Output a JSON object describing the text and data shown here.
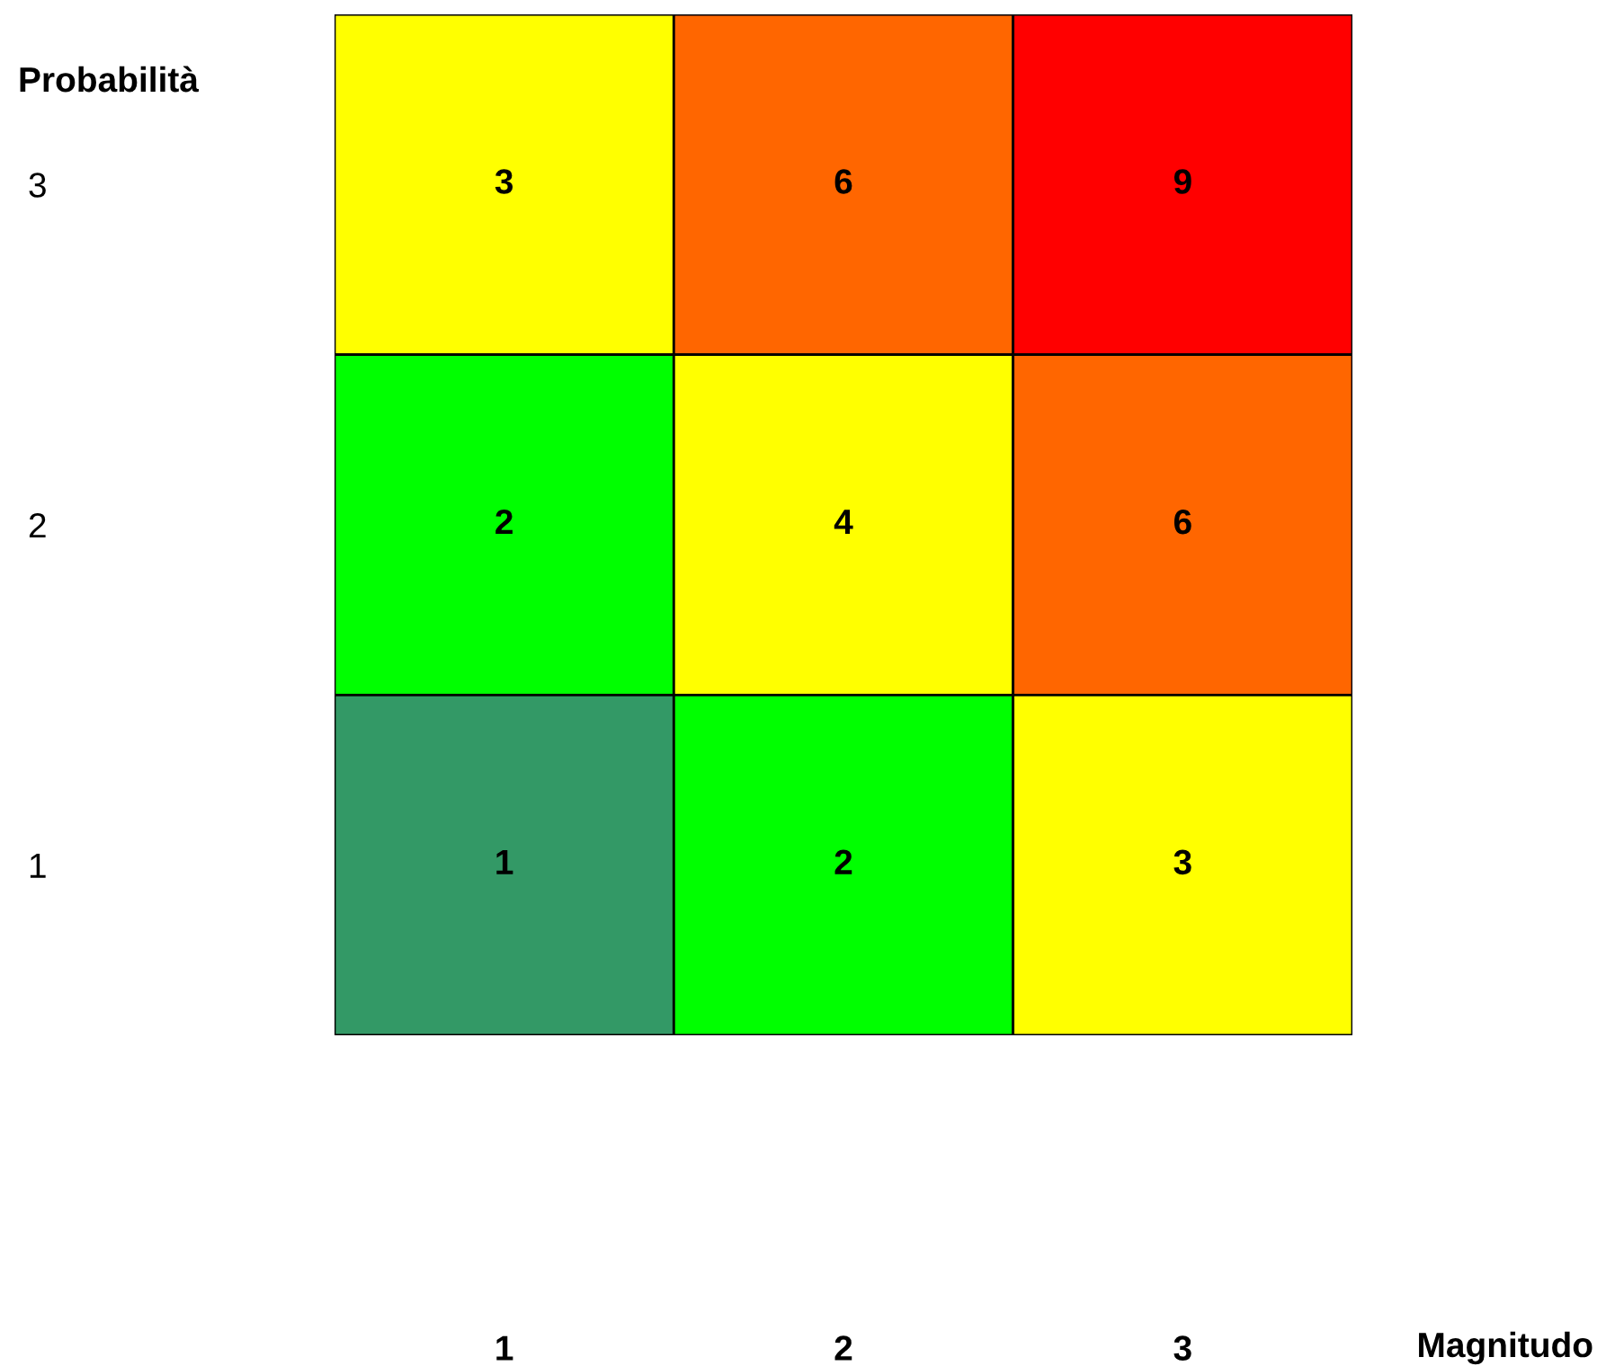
{
  "chart_data": {
    "type": "heatmap",
    "xlabel": "Magnitudo",
    "ylabel": "Probabilità",
    "categories": [
      "1",
      "2",
      "3"
    ],
    "y_categories": [
      "3",
      "2",
      "1"
    ],
    "cells": [
      [
        3,
        6,
        9
      ],
      [
        2,
        4,
        6
      ],
      [
        1,
        2,
        3
      ]
    ],
    "colors": [
      "#339966",
      "#00ff00",
      "#ffff00",
      "#ffff00",
      "#ff6600",
      "#ff0000"
    ],
    "cell_labels": [
      [
        "3",
        "6",
        "9"
      ],
      [
        "2",
        "4",
        "6"
      ],
      [
        "1",
        "2",
        "3"
      ]
    ],
    "data_labels": true,
    "grid": false
  }
}
